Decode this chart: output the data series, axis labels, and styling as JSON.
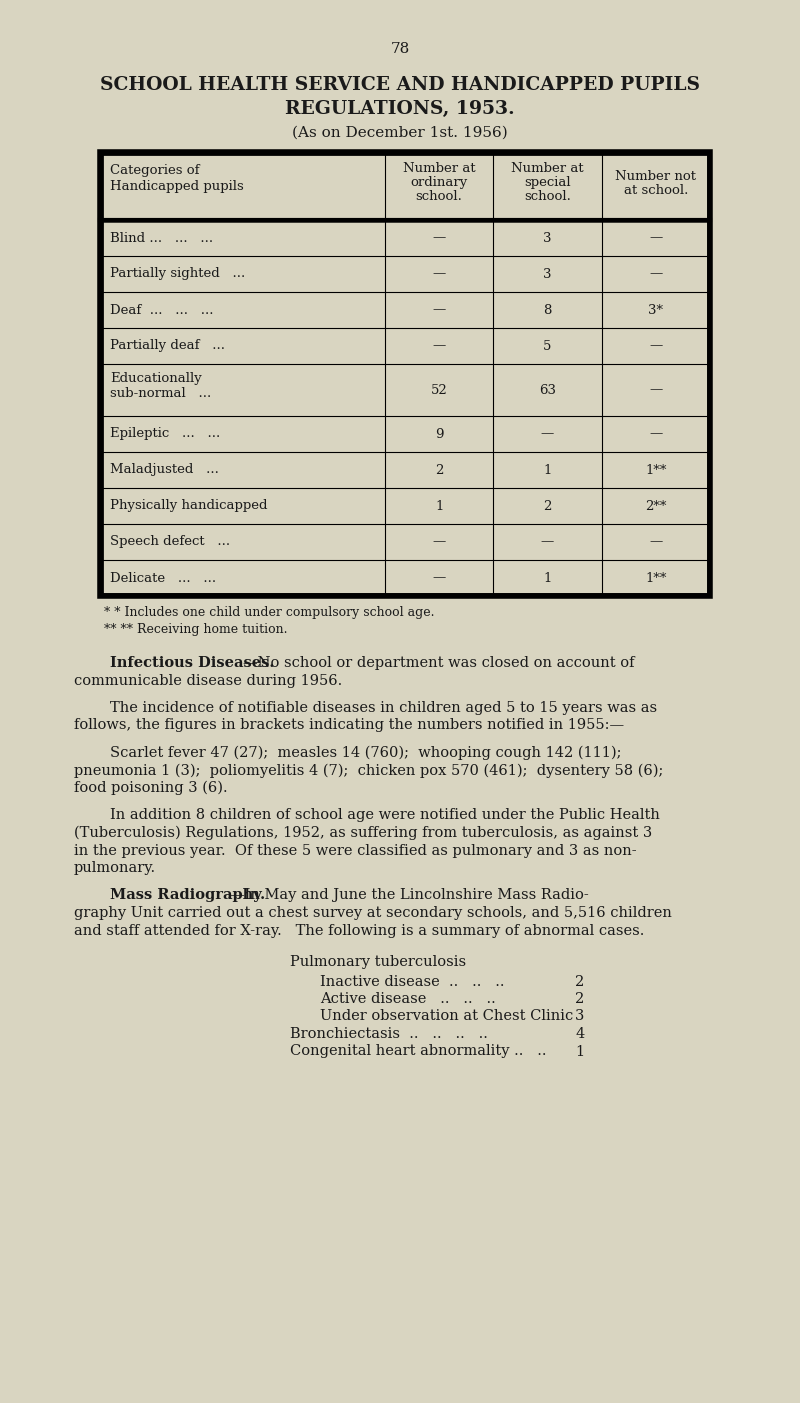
{
  "page_number": "78",
  "title_line1": "SCHOOL HEALTH SERVICE AND HANDICAPPED PUPILS",
  "title_line2": "REGULATIONS, 1953.",
  "subtitle": "(As on December 1st. 1956)",
  "bg_color": "#d9d5c1",
  "text_color": "#1a1a1a",
  "table_col_labels": [
    "Categories of\nHandicapped pupils",
    "Number at\nordinary\nschool.",
    "Number at\nspecial\nschool.",
    "Number not\nat school."
  ],
  "table_rows": [
    [
      "Blind ...   ...   ...",
      "—",
      "3",
      "—"
    ],
    [
      "Partially sighted   ...",
      "—",
      "3",
      "—"
    ],
    [
      "Deaf  ...   ...   ...",
      "—",
      "8",
      "3*"
    ],
    [
      "Partially deaf   ...",
      "—",
      "5",
      "—"
    ],
    [
      "Educationally\nsub-normal   ...",
      "52",
      "63",
      "—"
    ],
    [
      "Epileptic   ...   ...",
      "9",
      "—",
      "—"
    ],
    [
      "Maladjusted   ...",
      "2",
      "1",
      "1**"
    ],
    [
      "Physically handicapped",
      "1",
      "2",
      "2**"
    ],
    [
      "Speech defect   ...",
      "—",
      "—",
      "—"
    ],
    [
      "Delicate   ...   ...",
      "—",
      "1",
      "1**"
    ]
  ],
  "footnote1": "* Includes one child under compulsory school age.",
  "footnote2": "** Receiving home tuition.",
  "para1_bold": "Infectious Diseases.",
  "para1_line1_rest": "—No school or department was closed on account of",
  "para1_line2": "communicable disease during 1956.",
  "para2_line1": "The incidence of notifiable diseases in children aged 5 to 15 years was as",
  "para2_line2": "follows, the figures in brackets indicating the numbers notified in 1955:—",
  "para3_line1": "Scarlet fever 47 (27);  measles 14 (760);  whooping cough 142 (111);",
  "para3_line2": "pneumonia 1 (3);  poliomyelitis 4 (7);  chicken pox 570 (461);  dysentery 58 (6);",
  "para3_line3": "food poisoning 3 (6).",
  "para4_line1": "In addition 8 children of school age were notified under the Public Health",
  "para4_line2": "(Tuberculosis) Regulations, 1952, as suffering from tuberculosis, as against 3",
  "para4_line3": "in the previous year.  Of these 5 were classified as pulmonary and 3 as non-",
  "para4_line4": "pulmonary.",
  "para5_bold": "Mass Radiography.",
  "para5_line1_rest": "—In May and June the Lincolnshire Mass Radio-",
  "para5_line2": "graphy Unit carried out a chest survey at secondary schools, and 5,516 children",
  "para5_line3": "and staff attended for X-ray.   The following is a summary of abnormal cases.",
  "rad_header": "Pulmonary tuberculosis",
  "rad_items": [
    [
      "Inactive disease  ..   ..   ..",
      "2",
      true
    ],
    [
      "Active disease   ..   ..   ..",
      "2",
      true
    ],
    [
      "Under observation at Chest Clinic",
      "3",
      true
    ],
    [
      "Bronchiectasis  ..   ..   ..   ..",
      "4",
      false
    ],
    [
      "Congenital heart abnormality ..   ..",
      "1",
      false
    ]
  ]
}
